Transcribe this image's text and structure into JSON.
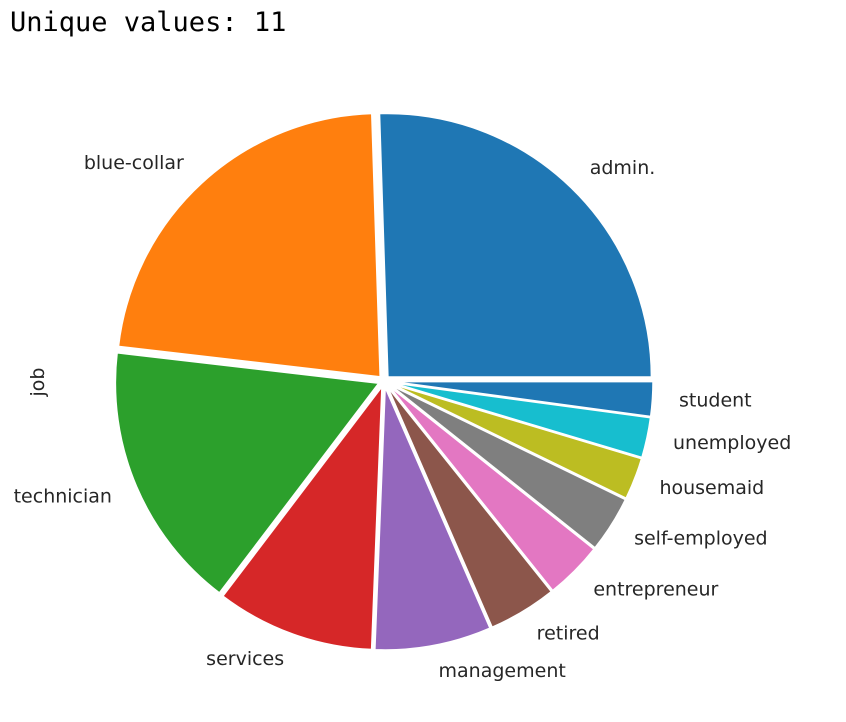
{
  "output": {
    "header_text": "Unique values: 11"
  },
  "chart_data": {
    "type": "pie",
    "title": "",
    "ylabel": "job",
    "categories": [
      "admin.",
      "blue-collar",
      "technician",
      "services",
      "management",
      "retired",
      "entrepreneur",
      "self-employed",
      "housemaid",
      "unemployed",
      "student"
    ],
    "values": [
      10422,
      9254,
      6743,
      3969,
      2924,
      1720,
      1456,
      1421,
      1060,
      1014,
      875
    ],
    "colors": [
      "#1f77b4",
      "#ff7f0e",
      "#2ca02c",
      "#d62728",
      "#9467bd",
      "#8c564b",
      "#e377c2",
      "#7f7f7f",
      "#bcbd22",
      "#17becf",
      "#1f77b4"
    ],
    "start_angle_deg": 0,
    "direction": "counterclockwise",
    "explode": 0.02
  }
}
